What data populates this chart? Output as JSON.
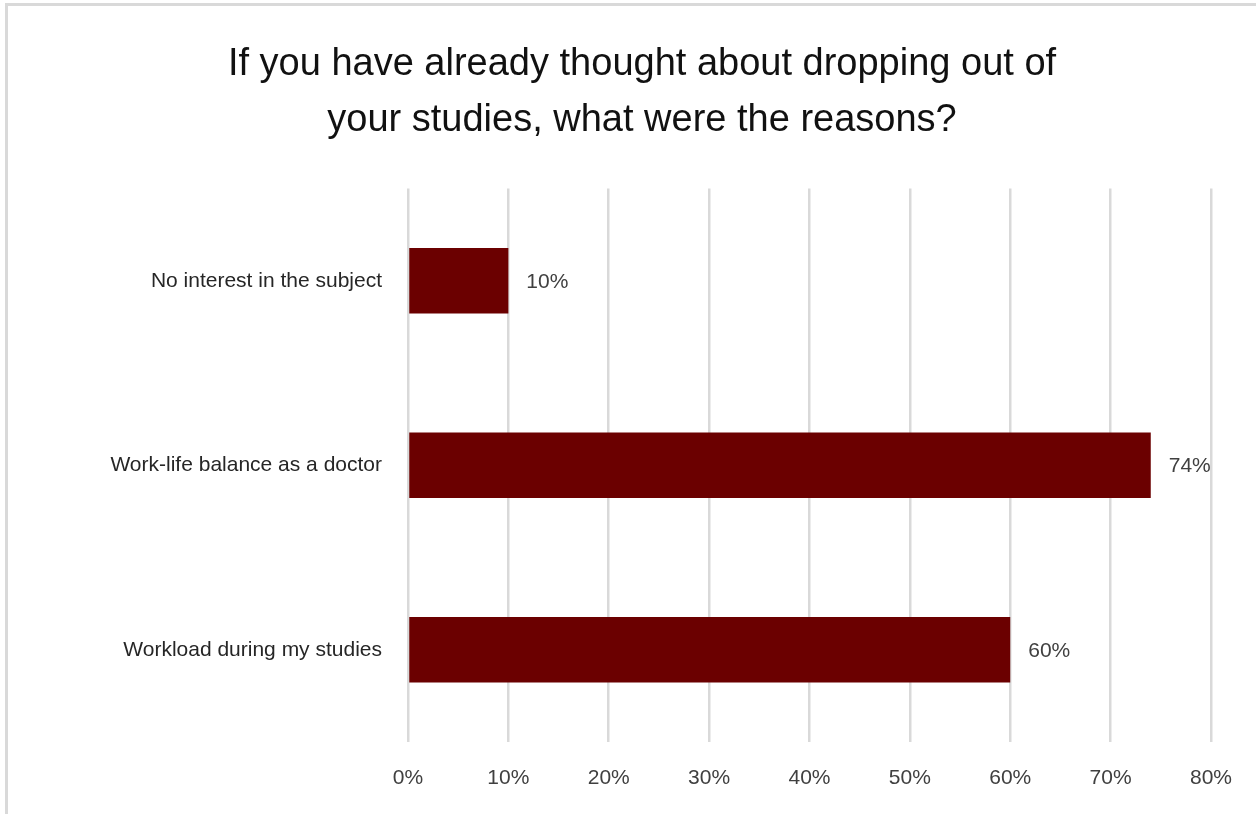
{
  "chart_data": {
    "type": "bar",
    "orientation": "horizontal",
    "title": "If you have already thought about dropping out of your studies, what were the reasons?",
    "categories": [
      "No interest in the subject",
      "Work-life balance as a doctor",
      "Workload during my studies"
    ],
    "values": [
      10,
      74,
      60
    ],
    "value_labels": [
      "10%",
      "74%",
      "60%"
    ],
    "color": "#6b0000",
    "xlim": [
      0,
      80
    ],
    "xticks": [
      {
        "value": 0,
        "label": "0%"
      },
      {
        "value": 10,
        "label": "10%"
      },
      {
        "value": 20,
        "label": "20%"
      },
      {
        "value": 30,
        "label": "30%"
      },
      {
        "value": 40,
        "label": "40%"
      },
      {
        "value": 50,
        "label": "50%"
      },
      {
        "value": 60,
        "label": "60%"
      },
      {
        "value": 70,
        "label": "70%"
      },
      {
        "value": 80,
        "label": "80%"
      }
    ],
    "grid": "x"
  }
}
